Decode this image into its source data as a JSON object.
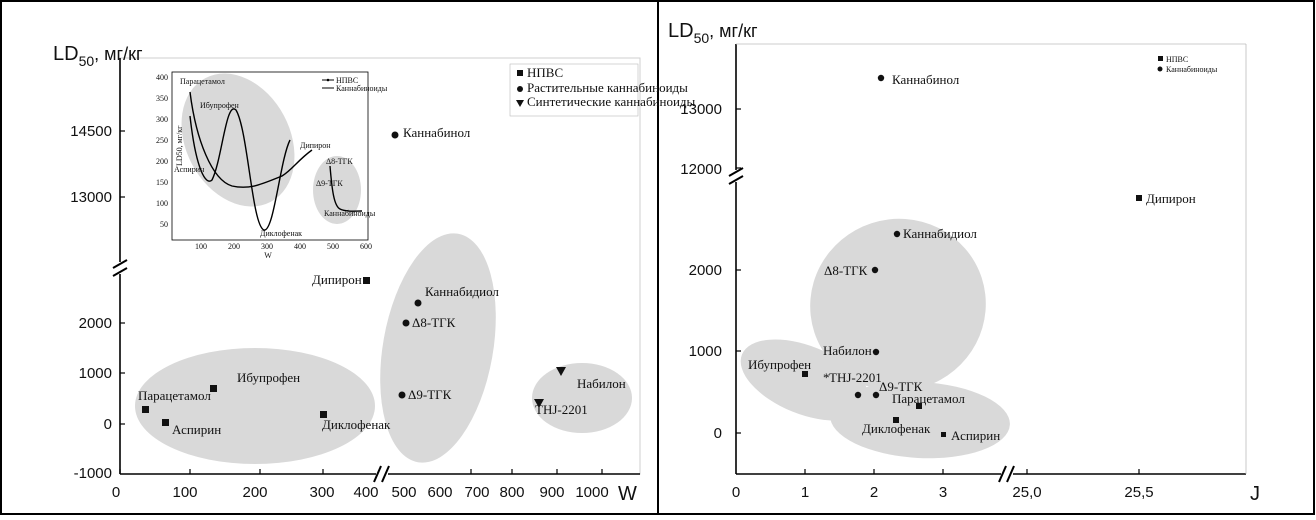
{
  "colors": {
    "cluster_fill": "#d9d9d9",
    "marker": "#111111",
    "frame": "#000000"
  },
  "chart_data": [
    {
      "id": "left",
      "type": "scatter",
      "ylabel": "LD50, мг/кг",
      "ylabel_main": "LD",
      "ylabel_sub": "50",
      "ylabel_unit": ", мг/кг",
      "xlabel": "W",
      "x_axis_broken": true,
      "y_axis_broken": true,
      "x_ticks": [
        "0",
        "100",
        "200",
        "300",
        "400",
        "500",
        "600",
        "700",
        "800",
        "900",
        "1000"
      ],
      "y_ticks_lower": [
        "-1000",
        "0",
        "1000",
        "2000"
      ],
      "y_ticks_upper": [
        "13000",
        "14500"
      ],
      "legend": [
        {
          "marker": "square",
          "label": "НПВС"
        },
        {
          "marker": "circle",
          "label": "Растительные каннабиноиды"
        },
        {
          "marker": "triangle",
          "label": "Синтетические каннабиноиды"
        }
      ],
      "legend_placement": "top-right",
      "series": [
        {
          "marker": "square",
          "points": [
            {
              "name": "Парацетамол",
              "x": 75,
              "y": 300
            },
            {
              "name": "Аспирин",
              "x": 107,
              "y": 30
            },
            {
              "name": "Ибупрофен",
              "x": 180,
              "y": 720
            },
            {
              "name": "Диклофенак",
              "x": 297,
              "y": 190
            },
            {
              "name": "Дипирон",
              "x": 497,
              "y": 3500
            }
          ]
        },
        {
          "marker": "circle",
          "points": [
            {
              "name": "Каннабинол",
              "x": 503,
              "y": 14400
            },
            {
              "name": "Каннабидиол",
              "x": 548,
              "y": 2400
            },
            {
              "name": "Δ8-ТГК",
              "x": 520,
              "y": 2000
            },
            {
              "name": "Δ9-ТГК",
              "x": 515,
              "y": 570
            }
          ]
        },
        {
          "marker": "triangle",
          "points": [
            {
              "name": "Набилон",
              "x": 950,
              "y": 1050
            },
            {
              "name": "THJ-2201",
              "x": 840,
              "y": 430
            }
          ]
        }
      ],
      "inset": {
        "ylabel": "LD50, мг/кг",
        "xlabel": "W",
        "x_ticks": [
          "100",
          "200",
          "300",
          "400",
          "500",
          "600"
        ],
        "y_ticks": [
          "50",
          "100",
          "150",
          "200",
          "250",
          "300",
          "350",
          "400"
        ],
        "legend": [
          "НПВС",
          "Каннабиноиды"
        ],
        "labels": [
          "Парацетамол",
          "Ибупрофен",
          "Аспирин",
          "Диклофенак",
          "Дипирон",
          "Δ8-ТГК",
          "Δ9-ТГК",
          "Каннабиноиды"
        ]
      }
    },
    {
      "id": "right",
      "type": "scatter",
      "ylabel": "LD50, мг/кг",
      "ylabel_main": "LD",
      "ylabel_sub": "50",
      "ylabel_unit": ", мг/кг",
      "xlabel": "J",
      "x_axis_broken": true,
      "y_axis_broken": true,
      "x_ticks": [
        "0",
        "1",
        "2",
        "3",
        "25,0",
        "25,5"
      ],
      "y_ticks_lower": [
        "0",
        "1000",
        "2000"
      ],
      "y_ticks_upper": [
        "12000",
        "13000"
      ],
      "legend": [
        {
          "marker": "square",
          "label": "НПВС"
        },
        {
          "marker": "circle",
          "label": "Каннабиноиды"
        }
      ],
      "legend_placement": "top-right",
      "series": [
        {
          "marker": "square",
          "points": [
            {
              "name": "Ибупрофен",
              "x": 1.0,
              "y": 720
            },
            {
              "name": "Парацетамол",
              "x": 2.62,
              "y": 330
            },
            {
              "name": "Диклофенак",
              "x": 2.3,
              "y": 160
            },
            {
              "name": "Аспирин",
              "x": 3.0,
              "y": 0
            },
            {
              "name": "Дипирон",
              "x": 25.55,
              "y": 12300
            }
          ]
        },
        {
          "marker": "circle",
          "points": [
            {
              "name": "Каннабинол",
              "x": 2.1,
              "y": 13450
            },
            {
              "name": "Каннабидиол",
              "x": 2.3,
              "y": 2450
            },
            {
              "name": "Δ8-ТГК",
              "x": 2.0,
              "y": 2000
            },
            {
              "name": "Набилон",
              "x": 2.0,
              "y": 1000
            },
            {
              "name": "THJ-2201",
              "x": 1.75,
              "y": 470
            },
            {
              "name": "Δ9-ТГК",
              "x": 2.0,
              "y": 470
            }
          ]
        }
      ]
    }
  ]
}
